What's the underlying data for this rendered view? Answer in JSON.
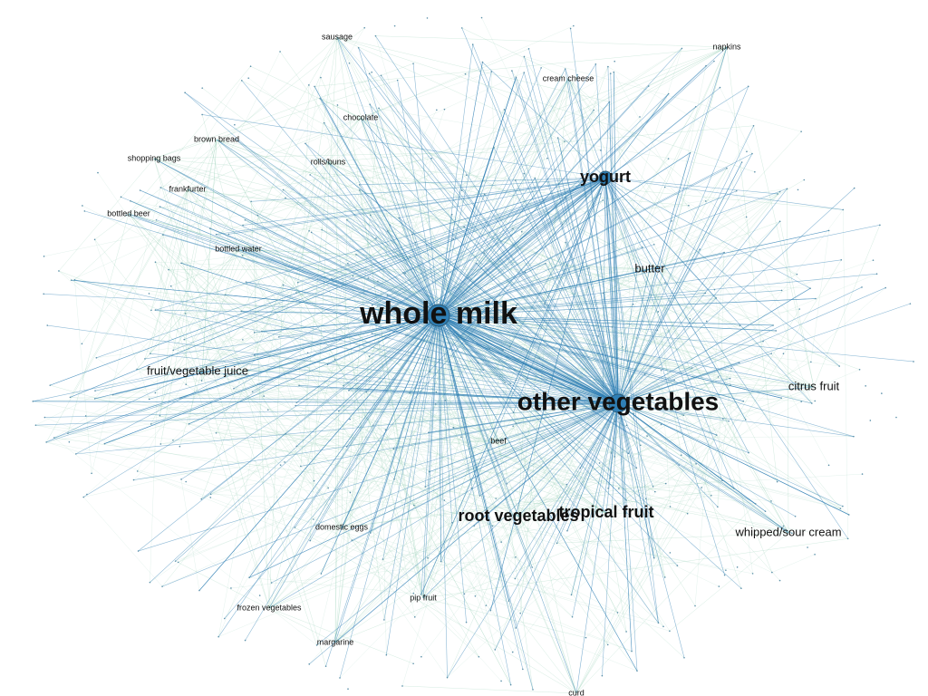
{
  "graph": {
    "edge_colors": {
      "hub": "#2f7fb5",
      "minor": "#9ad0b8"
    },
    "node_color": "#2f7fb5",
    "nodes": [
      {
        "id": "whole-milk",
        "label": "whole milk",
        "size": "xl",
        "hub": true
      },
      {
        "id": "other-vegetables",
        "label": "other vegetables",
        "size": "l",
        "hub": true
      },
      {
        "id": "yogurt",
        "label": "yogurt",
        "size": "m",
        "hub": true
      },
      {
        "id": "root-vegetables",
        "label": "root vegetables",
        "size": "m",
        "hub": false
      },
      {
        "id": "tropical-fruit",
        "label": "tropical fruit",
        "size": "m",
        "hub": false
      },
      {
        "id": "whipped-sour-cream",
        "label": "whipped/sour cream",
        "size": "s",
        "hub": false
      },
      {
        "id": "citrus-fruit",
        "label": "citrus fruit",
        "size": "s",
        "hub": false
      },
      {
        "id": "butter",
        "label": "butter",
        "size": "s",
        "hub": false
      },
      {
        "id": "sausage",
        "label": "sausage",
        "size": "xs",
        "hub": false
      },
      {
        "id": "chocolate",
        "label": "chocolate",
        "size": "xs",
        "hub": false
      },
      {
        "id": "rolls-buns",
        "label": "rolls/buns",
        "size": "xs",
        "hub": false
      },
      {
        "id": "bottled-water",
        "label": "bottled water",
        "size": "xs",
        "hub": false
      },
      {
        "id": "fruit-vegetable-juice",
        "label": "fruit/vegetable juice",
        "size": "s",
        "hub": false
      },
      {
        "id": "domestic-eggs",
        "label": "domestic eggs",
        "size": "xs",
        "hub": false
      },
      {
        "id": "pip-fruit",
        "label": "pip fruit",
        "size": "xs",
        "hub": false
      },
      {
        "id": "frozen-vegetables",
        "label": "frozen vegetables",
        "size": "xs",
        "hub": false
      },
      {
        "id": "margarine",
        "label": "margarine",
        "size": "xs",
        "hub": false
      },
      {
        "id": "brown-bread",
        "label": "brown bread",
        "size": "xs",
        "hub": false
      },
      {
        "id": "shopping-bags",
        "label": "shopping bags",
        "size": "xs",
        "hub": false
      },
      {
        "id": "frankfurter",
        "label": "frankfurter",
        "size": "xs",
        "hub": false
      },
      {
        "id": "bottled-beer",
        "label": "bottled beer",
        "size": "xs",
        "hub": false
      },
      {
        "id": "cream-cheese",
        "label": "cream cheese",
        "size": "xs",
        "hub": false
      },
      {
        "id": "napkins",
        "label": "napkins",
        "size": "xs",
        "hub": false
      },
      {
        "id": "beef",
        "label": "beef",
        "size": "xs",
        "hub": false
      },
      {
        "id": "curd",
        "label": "curd",
        "size": "xs",
        "hub": false
      }
    ]
  }
}
